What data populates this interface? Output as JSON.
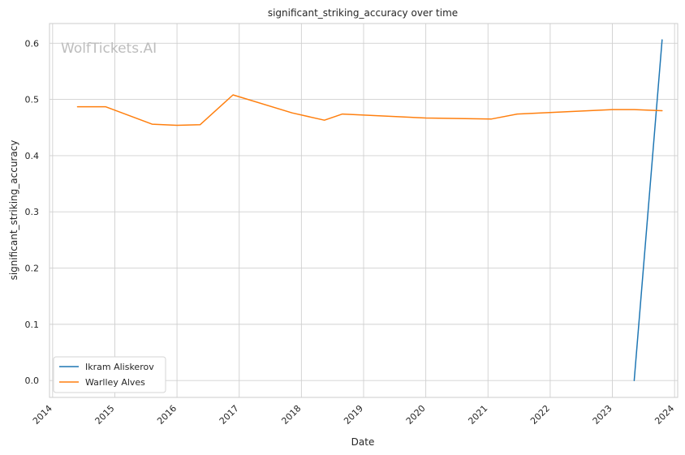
{
  "chart_data": {
    "type": "line",
    "title": "significant_striking_accuracy over time",
    "xlabel": "Date",
    "ylabel": "significant_striking_accuracy",
    "watermark": "WolfTickets.AI",
    "xlim": [
      2013.95,
      2024.05
    ],
    "ylim": [
      -0.03,
      0.635
    ],
    "x_ticks": [
      2014,
      2015,
      2016,
      2017,
      2018,
      2019,
      2020,
      2021,
      2022,
      2023,
      2024
    ],
    "x_tick_labels": [
      "2014",
      "2015",
      "2016",
      "2017",
      "2018",
      "2019",
      "2020",
      "2021",
      "2022",
      "2023",
      "2024"
    ],
    "y_ticks": [
      0.0,
      0.1,
      0.2,
      0.3,
      0.4,
      0.5,
      0.6
    ],
    "y_tick_labels": [
      "0.0",
      "0.1",
      "0.2",
      "0.3",
      "0.4",
      "0.5",
      "0.6"
    ],
    "grid": true,
    "legend_position": "lower-left",
    "series": [
      {
        "name": "Ikram Aliskerov",
        "color": "#1f77b4",
        "x": [
          2023.35,
          2023.8
        ],
        "y": [
          0.0,
          0.606
        ]
      },
      {
        "name": "Warlley Alves",
        "color": "#ff7f0e",
        "x": [
          2014.4,
          2014.85,
          2015.6,
          2016.0,
          2016.37,
          2016.9,
          2017.85,
          2018.37,
          2018.66,
          2020.0,
          2021.05,
          2021.47,
          2023.0,
          2023.35,
          2023.8
        ],
        "y": [
          0.487,
          0.487,
          0.456,
          0.454,
          0.455,
          0.508,
          0.476,
          0.463,
          0.474,
          0.467,
          0.465,
          0.474,
          0.482,
          0.482,
          0.48
        ]
      }
    ]
  }
}
